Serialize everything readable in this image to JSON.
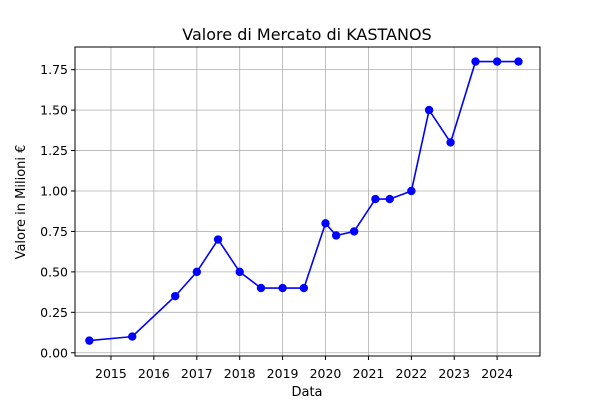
{
  "chart_data": {
    "type": "line",
    "title": "Valore di Mercato di KASTANOS",
    "xlabel": "Data",
    "ylabel": "Valore in Milioni €",
    "x_ticks": [
      {
        "date": "2015-01-01",
        "label": "2015"
      },
      {
        "date": "2016-01-01",
        "label": "2016"
      },
      {
        "date": "2017-01-01",
        "label": "2017"
      },
      {
        "date": "2018-01-01",
        "label": "2018"
      },
      {
        "date": "2019-01-01",
        "label": "2019"
      },
      {
        "date": "2020-01-01",
        "label": "2020"
      },
      {
        "date": "2021-01-01",
        "label": "2021"
      },
      {
        "date": "2022-01-01",
        "label": "2022"
      },
      {
        "date": "2023-01-01",
        "label": "2023"
      },
      {
        "date": "2024-01-01",
        "label": "2024"
      }
    ],
    "y_ticks": [
      {
        "value": 0.0,
        "label": "0.00"
      },
      {
        "value": 0.25,
        "label": "0.25"
      },
      {
        "value": 0.5,
        "label": "0.50"
      },
      {
        "value": 0.75,
        "label": "0.75"
      },
      {
        "value": 1.0,
        "label": "1.00"
      },
      {
        "value": 1.25,
        "label": "1.25"
      },
      {
        "value": 1.5,
        "label": "1.50"
      },
      {
        "value": 1.75,
        "label": "1.75"
      }
    ],
    "xlim": [
      "2014-03-01",
      "2024-12-31"
    ],
    "ylim": [
      -0.02,
      1.89
    ],
    "grid": true,
    "series": [
      {
        "color": "#0000ff",
        "points": [
          {
            "x": "2014-07-01",
            "y": 0.075
          },
          {
            "x": "2015-07-01",
            "y": 0.1
          },
          {
            "x": "2016-07-01",
            "y": 0.35
          },
          {
            "x": "2017-01-01",
            "y": 0.5
          },
          {
            "x": "2017-07-01",
            "y": 0.7
          },
          {
            "x": "2018-01-01",
            "y": 0.5
          },
          {
            "x": "2018-07-01",
            "y": 0.4
          },
          {
            "x": "2019-01-01",
            "y": 0.4
          },
          {
            "x": "2019-07-01",
            "y": 0.4
          },
          {
            "x": "2020-01-01",
            "y": 0.8
          },
          {
            "x": "2020-04-01",
            "y": 0.725
          },
          {
            "x": "2020-09-01",
            "y": 0.75
          },
          {
            "x": "2021-03-01",
            "y": 0.95
          },
          {
            "x": "2021-07-01",
            "y": 0.95
          },
          {
            "x": "2022-01-01",
            "y": 1.0
          },
          {
            "x": "2022-06-01",
            "y": 1.5
          },
          {
            "x": "2022-12-01",
            "y": 1.3
          },
          {
            "x": "2023-07-01",
            "y": 1.8
          },
          {
            "x": "2024-01-01",
            "y": 1.8
          },
          {
            "x": "2024-07-01",
            "y": 1.8
          }
        ]
      }
    ]
  }
}
